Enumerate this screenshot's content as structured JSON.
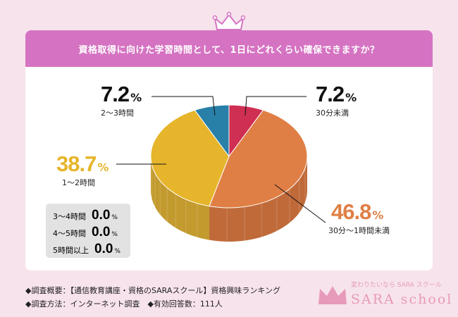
{
  "title": "資格取得に向けた学習時間として、1日にどれくらい確保できますか？",
  "chart_data": {
    "type": "pie",
    "style": "3d",
    "start": "12 o'clock, clockwise",
    "slices": [
      {
        "label": "30分未満",
        "value": 7.2,
        "color": "#cf2f52",
        "side": "#a8263f"
      },
      {
        "label": "30分～1時間未満",
        "value": 46.8,
        "color": "#e07f45",
        "side": "#c06a3a"
      },
      {
        "label": "1～2時間",
        "value": 38.7,
        "color": "#e6b52b",
        "side": "#c39a2e"
      },
      {
        "label": "2～3時間",
        "value": 7.2,
        "color": "#2880a8",
        "side": "#1f6688"
      }
    ],
    "zero_items": [
      {
        "label": "3～4時間",
        "value": "0.0"
      },
      {
        "label": "4～5時間",
        "value": "0.0"
      },
      {
        "label": "5時間以上",
        "value": "0.0"
      }
    ],
    "percent_sign": "%",
    "value_labels": {
      "s0": "7.2",
      "s1": "46.8",
      "s2": "38.7",
      "s3": "7.2"
    }
  },
  "footer": {
    "line1": "◆調査概要：【通信教育講座・資格のSARAスクール】資格興味ランキング",
    "line2": "◆調査方法：インターネット調査　◆有効回答数：111人"
  },
  "logo": {
    "tagline": "変わりたいなら SARA スクール",
    "name": "SARA school"
  }
}
